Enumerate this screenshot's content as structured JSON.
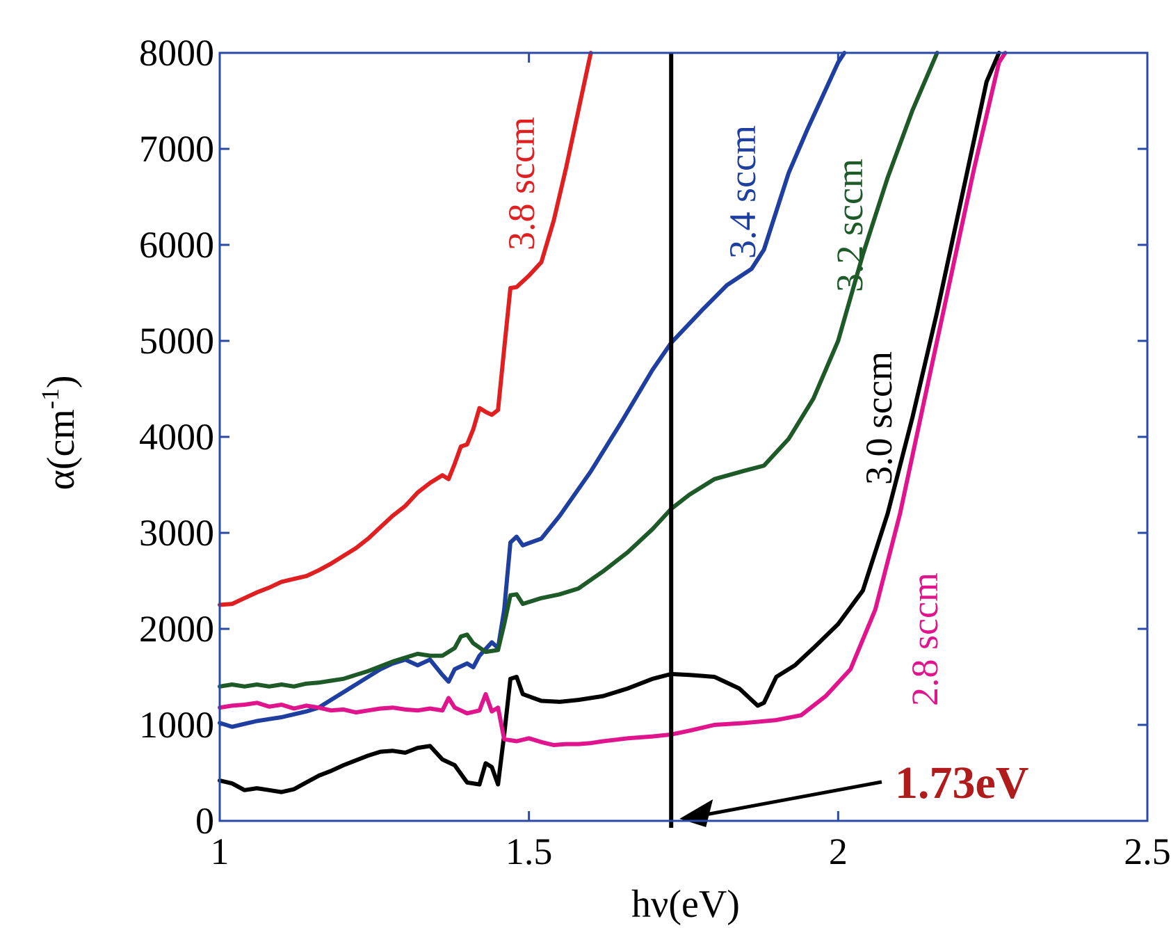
{
  "chart_data": {
    "type": "line",
    "xlabel": "hν(eV)",
    "ylabel": "α(cm",
    "ylabel_sup": "-1",
    "ylabel_close": ")",
    "xlim": [
      1,
      2.5
    ],
    "ylim": [
      0,
      8000
    ],
    "x_ticks": [
      "1",
      "1.5",
      "2",
      "2.5"
    ],
    "y_ticks": [
      "0",
      "1000",
      "2000",
      "3000",
      "4000",
      "5000",
      "6000",
      "7000",
      "8000"
    ],
    "grid": false,
    "axis_color": "#2a4aa8",
    "marker_line": {
      "x": 1.73,
      "label": "1.73eV",
      "color": "#000000",
      "label_color": "#b01c1c"
    },
    "series": [
      {
        "name": "3.8 sccm",
        "color": "#e02020",
        "points": [
          [
            1.0,
            2250
          ],
          [
            1.02,
            2260
          ],
          [
            1.04,
            2320
          ],
          [
            1.06,
            2380
          ],
          [
            1.08,
            2430
          ],
          [
            1.1,
            2490
          ],
          [
            1.12,
            2520
          ],
          [
            1.14,
            2550
          ],
          [
            1.16,
            2610
          ],
          [
            1.18,
            2680
          ],
          [
            1.2,
            2760
          ],
          [
            1.22,
            2840
          ],
          [
            1.24,
            2940
          ],
          [
            1.26,
            3060
          ],
          [
            1.28,
            3180
          ],
          [
            1.3,
            3280
          ],
          [
            1.32,
            3420
          ],
          [
            1.34,
            3520
          ],
          [
            1.36,
            3600
          ],
          [
            1.37,
            3560
          ],
          [
            1.38,
            3720
          ],
          [
            1.39,
            3900
          ],
          [
            1.4,
            3920
          ],
          [
            1.41,
            4080
          ],
          [
            1.42,
            4300
          ],
          [
            1.43,
            4260
          ],
          [
            1.44,
            4230
          ],
          [
            1.45,
            4280
          ],
          [
            1.46,
            4920
          ],
          [
            1.47,
            5550
          ],
          [
            1.48,
            5560
          ],
          [
            1.5,
            5680
          ],
          [
            1.52,
            5820
          ],
          [
            1.54,
            6250
          ],
          [
            1.56,
            6800
          ],
          [
            1.58,
            7400
          ],
          [
            1.6,
            8000
          ]
        ]
      },
      {
        "name": "3.4 sccm",
        "color": "#1f3fa0",
        "points": [
          [
            1.0,
            1020
          ],
          [
            1.02,
            980
          ],
          [
            1.04,
            1010
          ],
          [
            1.06,
            1040
          ],
          [
            1.08,
            1060
          ],
          [
            1.1,
            1080
          ],
          [
            1.12,
            1110
          ],
          [
            1.14,
            1140
          ],
          [
            1.16,
            1180
          ],
          [
            1.18,
            1260
          ],
          [
            1.2,
            1340
          ],
          [
            1.22,
            1420
          ],
          [
            1.24,
            1500
          ],
          [
            1.26,
            1580
          ],
          [
            1.28,
            1640
          ],
          [
            1.3,
            1680
          ],
          [
            1.32,
            1620
          ],
          [
            1.34,
            1680
          ],
          [
            1.36,
            1520
          ],
          [
            1.37,
            1450
          ],
          [
            1.38,
            1580
          ],
          [
            1.4,
            1640
          ],
          [
            1.41,
            1600
          ],
          [
            1.42,
            1720
          ],
          [
            1.44,
            1860
          ],
          [
            1.45,
            1800
          ],
          [
            1.46,
            2200
          ],
          [
            1.47,
            2900
          ],
          [
            1.48,
            2960
          ],
          [
            1.49,
            2870
          ],
          [
            1.52,
            2940
          ],
          [
            1.55,
            3180
          ],
          [
            1.6,
            3640
          ],
          [
            1.65,
            4160
          ],
          [
            1.7,
            4700
          ],
          [
            1.73,
            4980
          ],
          [
            1.78,
            5320
          ],
          [
            1.82,
            5580
          ],
          [
            1.86,
            5750
          ],
          [
            1.88,
            5950
          ],
          [
            1.9,
            6350
          ],
          [
            1.92,
            6750
          ],
          [
            1.95,
            7200
          ],
          [
            2.0,
            7900
          ],
          [
            2.01,
            8000
          ]
        ]
      },
      {
        "name": "3.2 sccm",
        "color": "#1d5a28",
        "points": [
          [
            1.0,
            1400
          ],
          [
            1.02,
            1420
          ],
          [
            1.04,
            1400
          ],
          [
            1.06,
            1420
          ],
          [
            1.08,
            1400
          ],
          [
            1.1,
            1420
          ],
          [
            1.12,
            1400
          ],
          [
            1.14,
            1430
          ],
          [
            1.16,
            1440
          ],
          [
            1.18,
            1460
          ],
          [
            1.2,
            1480
          ],
          [
            1.22,
            1520
          ],
          [
            1.24,
            1560
          ],
          [
            1.26,
            1610
          ],
          [
            1.28,
            1660
          ],
          [
            1.3,
            1700
          ],
          [
            1.32,
            1740
          ],
          [
            1.34,
            1720
          ],
          [
            1.36,
            1720
          ],
          [
            1.38,
            1800
          ],
          [
            1.39,
            1920
          ],
          [
            1.4,
            1940
          ],
          [
            1.41,
            1850
          ],
          [
            1.43,
            1760
          ],
          [
            1.45,
            1780
          ],
          [
            1.46,
            2050
          ],
          [
            1.47,
            2350
          ],
          [
            1.48,
            2360
          ],
          [
            1.49,
            2260
          ],
          [
            1.52,
            2320
          ],
          [
            1.55,
            2360
          ],
          [
            1.58,
            2420
          ],
          [
            1.62,
            2600
          ],
          [
            1.66,
            2800
          ],
          [
            1.7,
            3040
          ],
          [
            1.73,
            3250
          ],
          [
            1.76,
            3400
          ],
          [
            1.8,
            3560
          ],
          [
            1.85,
            3650
          ],
          [
            1.88,
            3700
          ],
          [
            1.92,
            3980
          ],
          [
            1.96,
            4400
          ],
          [
            2.0,
            5000
          ],
          [
            2.04,
            5900
          ],
          [
            2.08,
            6700
          ],
          [
            2.12,
            7400
          ],
          [
            2.16,
            8000
          ]
        ]
      },
      {
        "name": "3.0 sccm",
        "color": "#000000",
        "points": [
          [
            1.0,
            420
          ],
          [
            1.02,
            390
          ],
          [
            1.04,
            320
          ],
          [
            1.06,
            340
          ],
          [
            1.08,
            320
          ],
          [
            1.1,
            300
          ],
          [
            1.12,
            330
          ],
          [
            1.14,
            400
          ],
          [
            1.16,
            470
          ],
          [
            1.18,
            520
          ],
          [
            1.2,
            580
          ],
          [
            1.22,
            630
          ],
          [
            1.24,
            680
          ],
          [
            1.26,
            720
          ],
          [
            1.28,
            730
          ],
          [
            1.3,
            710
          ],
          [
            1.32,
            760
          ],
          [
            1.34,
            780
          ],
          [
            1.36,
            640
          ],
          [
            1.38,
            580
          ],
          [
            1.4,
            400
          ],
          [
            1.42,
            380
          ],
          [
            1.43,
            600
          ],
          [
            1.44,
            560
          ],
          [
            1.45,
            380
          ],
          [
            1.46,
            900
          ],
          [
            1.47,
            1480
          ],
          [
            1.48,
            1500
          ],
          [
            1.49,
            1320
          ],
          [
            1.52,
            1250
          ],
          [
            1.55,
            1240
          ],
          [
            1.58,
            1260
          ],
          [
            1.62,
            1300
          ],
          [
            1.66,
            1380
          ],
          [
            1.7,
            1480
          ],
          [
            1.73,
            1530
          ],
          [
            1.76,
            1520
          ],
          [
            1.8,
            1500
          ],
          [
            1.84,
            1380
          ],
          [
            1.87,
            1200
          ],
          [
            1.88,
            1230
          ],
          [
            1.9,
            1500
          ],
          [
            1.93,
            1620
          ],
          [
            1.96,
            1800
          ],
          [
            2.0,
            2050
          ],
          [
            2.04,
            2400
          ],
          [
            2.08,
            3200
          ],
          [
            2.12,
            4200
          ],
          [
            2.16,
            5300
          ],
          [
            2.2,
            6500
          ],
          [
            2.24,
            7700
          ],
          [
            2.26,
            8000
          ]
        ]
      },
      {
        "name": "2.8 sccm",
        "color": "#e0148c",
        "points": [
          [
            1.0,
            1180
          ],
          [
            1.02,
            1200
          ],
          [
            1.04,
            1210
          ],
          [
            1.06,
            1230
          ],
          [
            1.08,
            1190
          ],
          [
            1.1,
            1210
          ],
          [
            1.12,
            1170
          ],
          [
            1.14,
            1200
          ],
          [
            1.16,
            1180
          ],
          [
            1.18,
            1150
          ],
          [
            1.2,
            1160
          ],
          [
            1.22,
            1130
          ],
          [
            1.24,
            1150
          ],
          [
            1.26,
            1170
          ],
          [
            1.28,
            1180
          ],
          [
            1.3,
            1160
          ],
          [
            1.32,
            1150
          ],
          [
            1.34,
            1170
          ],
          [
            1.36,
            1150
          ],
          [
            1.37,
            1280
          ],
          [
            1.38,
            1180
          ],
          [
            1.4,
            1120
          ],
          [
            1.42,
            1150
          ],
          [
            1.43,
            1320
          ],
          [
            1.44,
            1140
          ],
          [
            1.45,
            1180
          ],
          [
            1.46,
            850
          ],
          [
            1.48,
            830
          ],
          [
            1.5,
            860
          ],
          [
            1.52,
            820
          ],
          [
            1.54,
            790
          ],
          [
            1.56,
            800
          ],
          [
            1.58,
            800
          ],
          [
            1.6,
            810
          ],
          [
            1.62,
            830
          ],
          [
            1.66,
            860
          ],
          [
            1.7,
            880
          ],
          [
            1.73,
            900
          ],
          [
            1.76,
            940
          ],
          [
            1.8,
            1000
          ],
          [
            1.85,
            1020
          ],
          [
            1.9,
            1050
          ],
          [
            1.94,
            1100
          ],
          [
            1.98,
            1300
          ],
          [
            2.02,
            1580
          ],
          [
            2.06,
            2200
          ],
          [
            2.1,
            3200
          ],
          [
            2.14,
            4400
          ],
          [
            2.18,
            5600
          ],
          [
            2.22,
            6800
          ],
          [
            2.26,
            7900
          ],
          [
            2.27,
            8000
          ]
        ]
      }
    ],
    "series_labels": [
      "3.8 sccm",
      "3.4 sccm",
      "3.2 sccm",
      "3.0 sccm",
      "2.8 sccm"
    ]
  }
}
